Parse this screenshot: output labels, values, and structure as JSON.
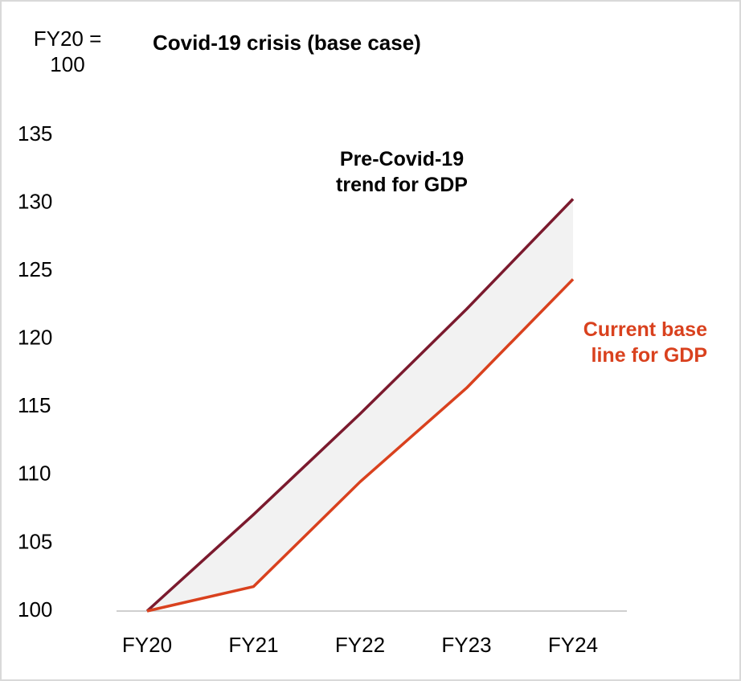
{
  "chart_data": {
    "type": "line",
    "title": "Covid-19 crisis (base case)",
    "ylabel": "FY20 = 100",
    "categories": [
      "FY20",
      "FY21",
      "FY22",
      "FY23",
      "FY24"
    ],
    "series": [
      {
        "name": "Pre-Covid-19 trend for GDP",
        "color": "#7b1a2e",
        "values": [
          100,
          107.1,
          114.5,
          122.2,
          130.3
        ]
      },
      {
        "name": "Current base line for GDP",
        "color": "#d9411e",
        "values": [
          100,
          101.8,
          109.5,
          116.4,
          124.4
        ]
      }
    ],
    "fill_between_color": "#f2f2f2",
    "ylim": [
      100,
      135
    ],
    "yticks": [
      100,
      105,
      110,
      115,
      120,
      125,
      130,
      135
    ],
    "grid": false
  }
}
